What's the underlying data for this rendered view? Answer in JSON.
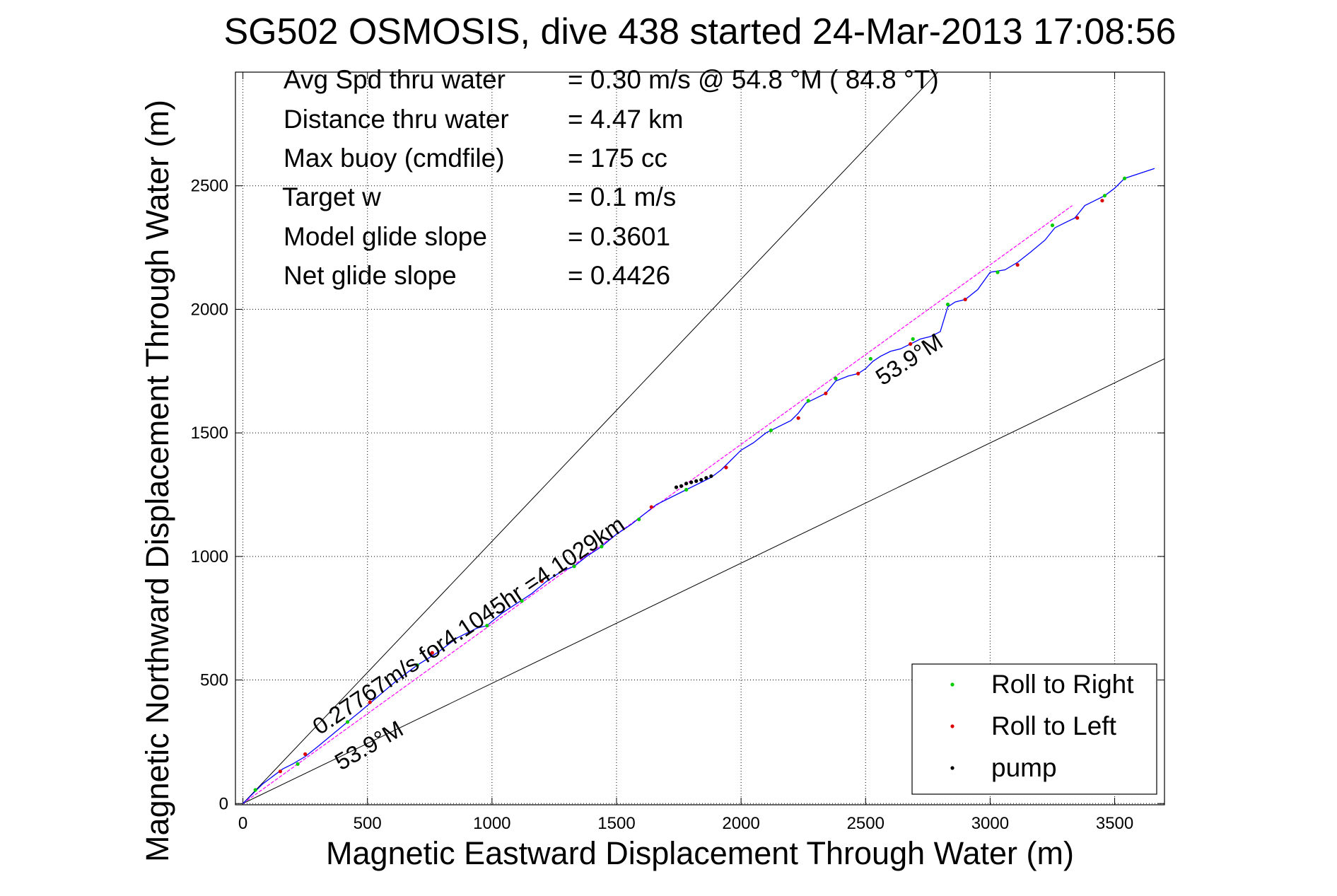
{
  "chart_data": {
    "type": "line",
    "title": "SG502 OSMOSIS, dive 438 started 24-Mar-2013 17:08:56",
    "xlabel": "Magnetic Eastward Displacement Through Water (m)",
    "ylabel": "Magnetic Northward Displacement Through Water (m)",
    "xlim": [
      -30,
      3700
    ],
    "ylim": [
      -5,
      2960
    ],
    "x_ticks": [
      0,
      500,
      1000,
      1500,
      2000,
      2500,
      3000,
      3500
    ],
    "y_ticks": [
      0,
      500,
      1000,
      1500,
      2000,
      2500
    ],
    "x_tick_labels": [
      "0",
      "500",
      "1000",
      "1500",
      "2000",
      "2500",
      "3000",
      "3500"
    ],
    "y_tick_labels": [
      "0",
      "500",
      "1000",
      "1500",
      "2000",
      "2500"
    ],
    "grid": true,
    "legend": {
      "placement": "bottom-right",
      "entries": [
        "Roll to Right",
        "Roll to Left",
        "pump"
      ]
    },
    "stats": [
      {
        "label": "Avg Spd thru water",
        "value": "=  0.30 m/s @  54.8 °M ( 84.8 °T)"
      },
      {
        "label": "Distance thru water",
        "value": "=  4.47 km"
      },
      {
        "label": "Max buoy (cmdfile)",
        "value": "= 175 cc"
      },
      {
        "label": "Target w",
        "value": "= 0.1 m/s"
      },
      {
        "label": "Model glide slope",
        "value": "= 0.3601"
      },
      {
        "label": "Net glide slope",
        "value": "= 0.4426"
      }
    ],
    "annotations": {
      "track_label": "0.27767m/s for4.1045hr =4.1029km",
      "heading_label_lower": "53.9°M",
      "heading_label_upper": "53.9°M"
    },
    "reference_lines": [
      {
        "x": [
          0,
          2790
        ],
        "y": [
          0,
          2960
        ]
      },
      {
        "x": [
          0,
          3700
        ],
        "y": [
          0,
          1800
        ]
      }
    ],
    "fit_line": {
      "x": [
        0,
        3330
      ],
      "y": [
        0,
        2420
      ]
    },
    "series": [
      {
        "name": "track",
        "x": [
          0,
          40,
          80,
          120,
          160,
          200,
          250,
          300,
          360,
          420,
          480,
          550,
          620,
          700,
          780,
          860,
          940,
          980,
          1040,
          1100,
          1160,
          1220,
          1280,
          1330,
          1380,
          1440,
          1500,
          1560,
          1610,
          1660,
          1720,
          1780,
          1840,
          1880,
          1920,
          1960,
          2000,
          2050,
          2100,
          2140,
          2200,
          2230,
          2260,
          2300,
          2340,
          2380,
          2430,
          2470,
          2500,
          2530,
          2560,
          2600,
          2640,
          2680,
          2720,
          2760,
          2800,
          2830,
          2860,
          2900,
          2950,
          3000,
          3060,
          3110,
          3160,
          3220,
          3260,
          3300,
          3340,
          3380,
          3420,
          3460,
          3500,
          3540,
          3600,
          3660
        ],
        "y": [
          0,
          40,
          80,
          110,
          140,
          160,
          190,
          230,
          280,
          330,
          380,
          440,
          500,
          560,
          610,
          670,
          710,
          720,
          770,
          810,
          850,
          900,
          940,
          960,
          1000,
          1040,
          1090,
          1130,
          1170,
          1210,
          1240,
          1270,
          1300,
          1320,
          1350,
          1390,
          1430,
          1460,
          1500,
          1520,
          1550,
          1580,
          1620,
          1640,
          1660,
          1710,
          1730,
          1740,
          1760,
          1790,
          1810,
          1830,
          1840,
          1860,
          1880,
          1890,
          1910,
          2010,
          2030,
          2040,
          2080,
          2150,
          2160,
          2190,
          2230,
          2280,
          2330,
          2350,
          2370,
          2420,
          2440,
          2460,
          2490,
          2530,
          2550,
          2570
        ]
      },
      {
        "name": "Roll to Right",
        "x": [
          50,
          220,
          420,
          700,
          980,
          1120,
          1330,
          1440,
          1590,
          1780,
          2120,
          2270,
          2380,
          2520,
          2690,
          2830,
          3030,
          3250,
          3460,
          3540
        ],
        "y": [
          55,
          160,
          330,
          560,
          720,
          820,
          960,
          1040,
          1150,
          1270,
          1510,
          1630,
          1720,
          1800,
          1880,
          2020,
          2150,
          2340,
          2460,
          2530
        ]
      },
      {
        "name": "Roll to Left",
        "x": [
          150,
          250,
          510,
          760,
          1200,
          1640,
          1940,
          2230,
          2340,
          2470,
          2680,
          2900,
          3110,
          3350,
          3450
        ],
        "y": [
          130,
          200,
          410,
          610,
          900,
          1200,
          1360,
          1560,
          1660,
          1740,
          1860,
          2040,
          2180,
          2370,
          2440
        ]
      },
      {
        "name": "pump",
        "x": [
          1740,
          1760,
          1780,
          1800,
          1820,
          1840,
          1860,
          1880
        ],
        "y": [
          1280,
          1285,
          1295,
          1300,
          1305,
          1310,
          1318,
          1325
        ]
      }
    ]
  },
  "colors": {
    "track": "#0000ff",
    "fit": "#ff00ff",
    "roll_right": "#00cc00",
    "roll_left": "#dd0000",
    "pump": "#000000"
  }
}
